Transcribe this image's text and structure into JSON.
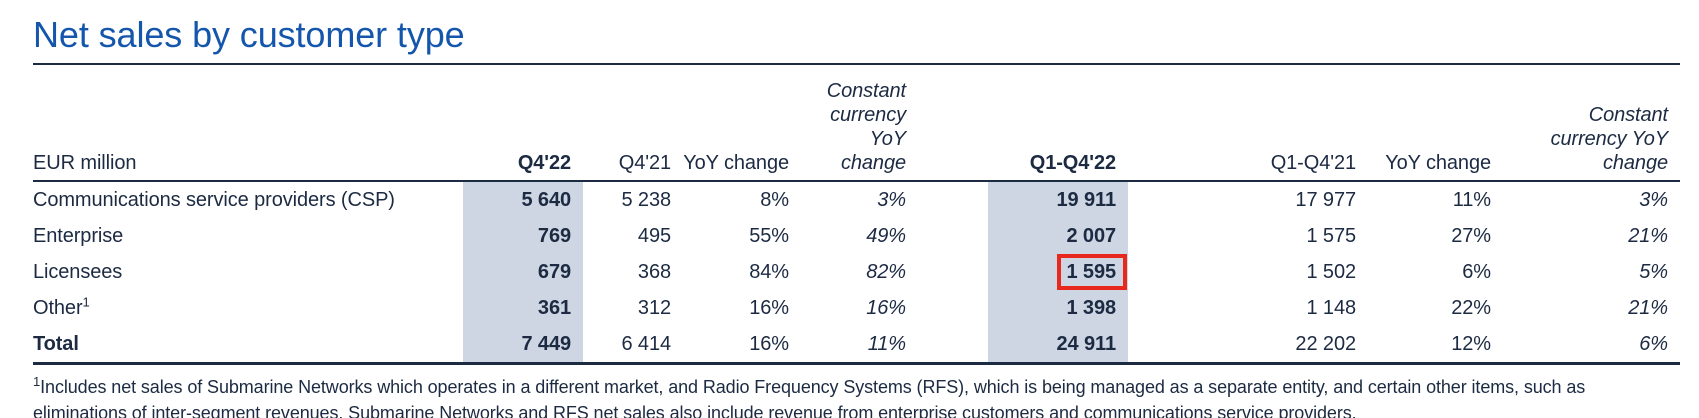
{
  "page": {
    "title": "Net sales by customer type"
  },
  "colors": {
    "accent_blue": "#1556ad",
    "text_navy": "#1c2a42",
    "highlight_band": "#cdd6e2",
    "annotation_red": "#e8281c"
  },
  "table": {
    "unit_label": "EUR million",
    "columns": [
      {
        "label": "Q4'22",
        "bold": true,
        "highlight": true
      },
      {
        "label": "Q4'21"
      },
      {
        "label": "YoY change"
      },
      {
        "label": "Constant\ncurrency\nYoY change",
        "italic": true
      },
      {
        "label": "Q1-Q4'22",
        "bold": true,
        "highlight": true
      },
      {
        "label": "Q1-Q4'21"
      },
      {
        "label": "YoY change"
      },
      {
        "label": "Constant\ncurrency YoY\nchange",
        "italic": true
      }
    ],
    "rows": [
      {
        "label": "Communications service providers (CSP)",
        "values": [
          "5 640",
          "5 238",
          "8%",
          "3%",
          "19 911",
          "17 977",
          "11%",
          "3%"
        ]
      },
      {
        "label": "Enterprise",
        "values": [
          "769",
          "495",
          "55%",
          "49%",
          "2 007",
          "1 575",
          "27%",
          "21%"
        ]
      },
      {
        "label": "Licensees",
        "values": [
          "679",
          "368",
          "84%",
          "82%",
          "1 595",
          "1 502",
          "6%",
          "5%"
        ]
      },
      {
        "label": "Other",
        "footnote_ref": "1",
        "values": [
          "361",
          "312",
          "16%",
          "16%",
          "1 398",
          "1 148",
          "22%",
          "21%"
        ]
      },
      {
        "label": "Total",
        "bold": true,
        "values": [
          "7 449",
          "6 414",
          "16%",
          "11%",
          "24 911",
          "22 202",
          "12%",
          "6%"
        ]
      }
    ],
    "red_box": {
      "row_index": 2,
      "value_index": 4
    }
  },
  "footnote": {
    "ref": "1",
    "text": "Includes net sales of Submarine Networks which operates in a different market, and Radio Frequency Systems (RFS), which is being managed as a separate entity, and certain other items, such as\neliminations of inter-segment revenues. Submarine Networks and RFS net sales also include revenue from enterprise customers and communications service providers."
  }
}
